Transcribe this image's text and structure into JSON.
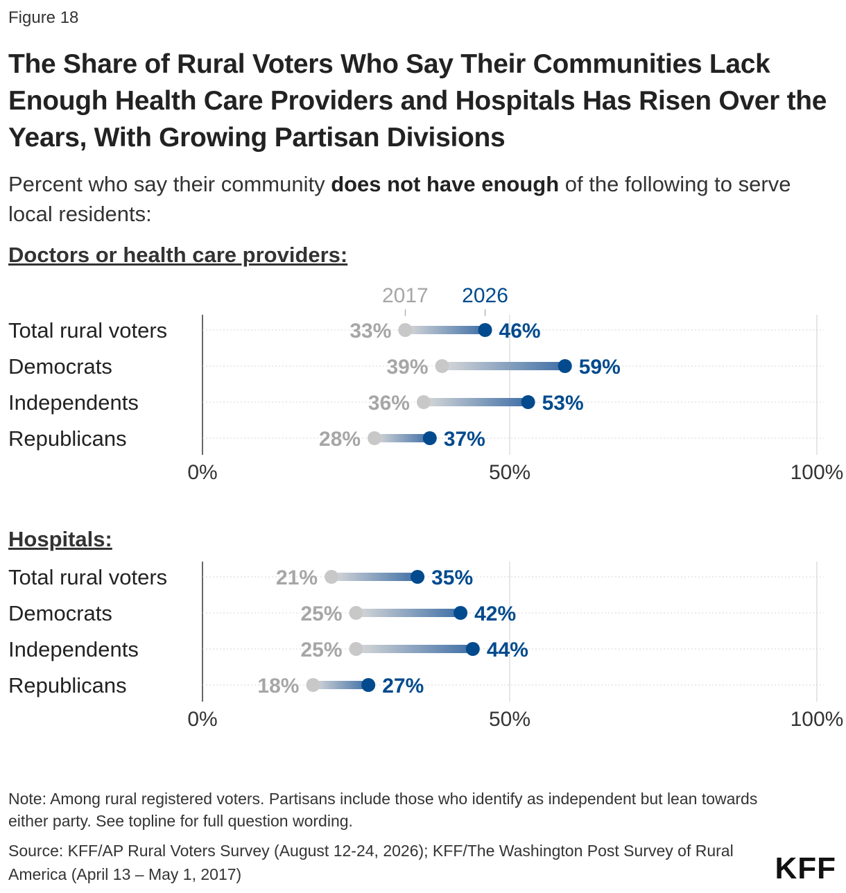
{
  "figure_label": "Figure 18",
  "title": "The Share of Rural Voters Who Say Their Communities Lack Enough Health Care Providers and Hospitals Has Risen Over the Years, With Growing Partisan Divisions",
  "subtitle": {
    "prefix": "Percent who say their community ",
    "emphasis": "does not have enough",
    "suffix": " of the following to serve local residents:"
  },
  "colors": {
    "year2017": "#c8c8c8",
    "year2017_text": "#a6a6a6",
    "year2026": "#004a8d",
    "grid": "#cccccc",
    "axis": "#333333"
  },
  "chart_data": [
    {
      "type": "dumbbell",
      "title": "Doctors or health care providers:",
      "legend": [
        "2017",
        "2026"
      ],
      "categories": [
        "Total rural voters",
        "Democrats",
        "Independents",
        "Republicans"
      ],
      "series": [
        {
          "name": "2017",
          "values": [
            33,
            39,
            36,
            28
          ]
        },
        {
          "name": "2026",
          "values": [
            46,
            59,
            53,
            37
          ]
        }
      ],
      "xlim": [
        0,
        100
      ],
      "xticks": [
        "0%",
        "50%",
        "100%"
      ],
      "value_suffix": "%"
    },
    {
      "type": "dumbbell",
      "title": "Hospitals:",
      "categories": [
        "Total rural voters",
        "Democrats",
        "Independents",
        "Republicans"
      ],
      "series": [
        {
          "name": "2017",
          "values": [
            21,
            25,
            25,
            18
          ]
        },
        {
          "name": "2026",
          "values": [
            35,
            42,
            44,
            27
          ]
        }
      ],
      "xlim": [
        0,
        100
      ],
      "xticks": [
        "0%",
        "50%",
        "100%"
      ],
      "value_suffix": "%"
    }
  ],
  "note": "Note: Among rural registered voters. Partisans include those who identify as independent but lean towards either party. See topline for full question wording.",
  "source": "Source: KFF/AP Rural Voters Survey (August 12-24, 2026); KFF/The Washington Post Survey of Rural America (April 13 – May 1, 2017)",
  "logo": "KFF"
}
